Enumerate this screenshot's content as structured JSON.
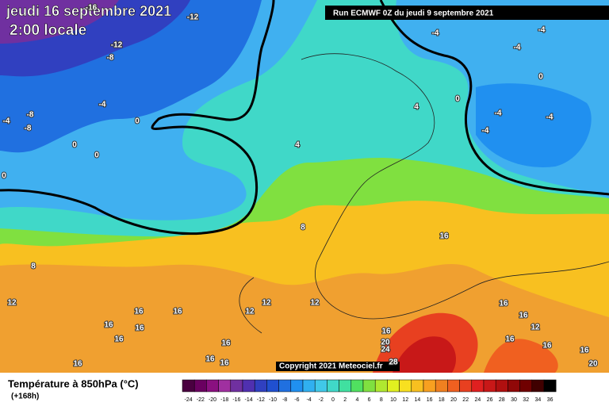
{
  "header": {
    "date": "jeudi 16 septembre 2021",
    "time": "2:00 locale",
    "run": "Run ECMWF 0Z du jeudi 9 septembre 2021",
    "copyright": "Copyright 2021 Meteociel.fr"
  },
  "legend": {
    "title": "Température à 850hPa (°C)",
    "lead": "(+168h)",
    "levels": [
      -24,
      -22,
      -20,
      -18,
      -16,
      -14,
      -12,
      -10,
      -8,
      -6,
      -4,
      -2,
      0,
      2,
      4,
      6,
      8,
      10,
      12,
      14,
      16,
      18,
      20,
      22,
      24,
      26,
      28,
      30,
      32,
      34,
      36
    ],
    "colors": [
      "#4a0040",
      "#6a0060",
      "#8a1080",
      "#a030a0",
      "#7030a0",
      "#5030b0",
      "#3040c0",
      "#2050d0",
      "#2070e0",
      "#2090f0",
      "#30b0f0",
      "#40c8e8",
      "#40d8c8",
      "#40e0a0",
      "#50e060",
      "#80e040",
      "#b0e830",
      "#e0f020",
      "#f8e020",
      "#f8c020",
      "#f8a020",
      "#f08020",
      "#f06020",
      "#e84020",
      "#e02020",
      "#c81818",
      "#b01010",
      "#900808",
      "#700000",
      "#400000",
      "#000000"
    ]
  },
  "map": {
    "contour_labels": [
      "-16",
      "-12",
      "-12",
      "-8",
      "-4",
      "-8",
      "-4",
      "-8",
      "0",
      "0",
      "0",
      "0",
      "4",
      "4",
      "0",
      "-4",
      "-4",
      "-4",
      "0",
      "-4",
      "-4",
      "-4",
      "8",
      "8",
      "16",
      "12",
      "12",
      "12",
      "12",
      "16",
      "16",
      "16",
      "16",
      "16",
      "16",
      "16",
      "20",
      "24",
      "28",
      "16",
      "16",
      "16",
      "16",
      "16",
      "12",
      "16",
      "16",
      "16",
      "20"
    ]
  }
}
